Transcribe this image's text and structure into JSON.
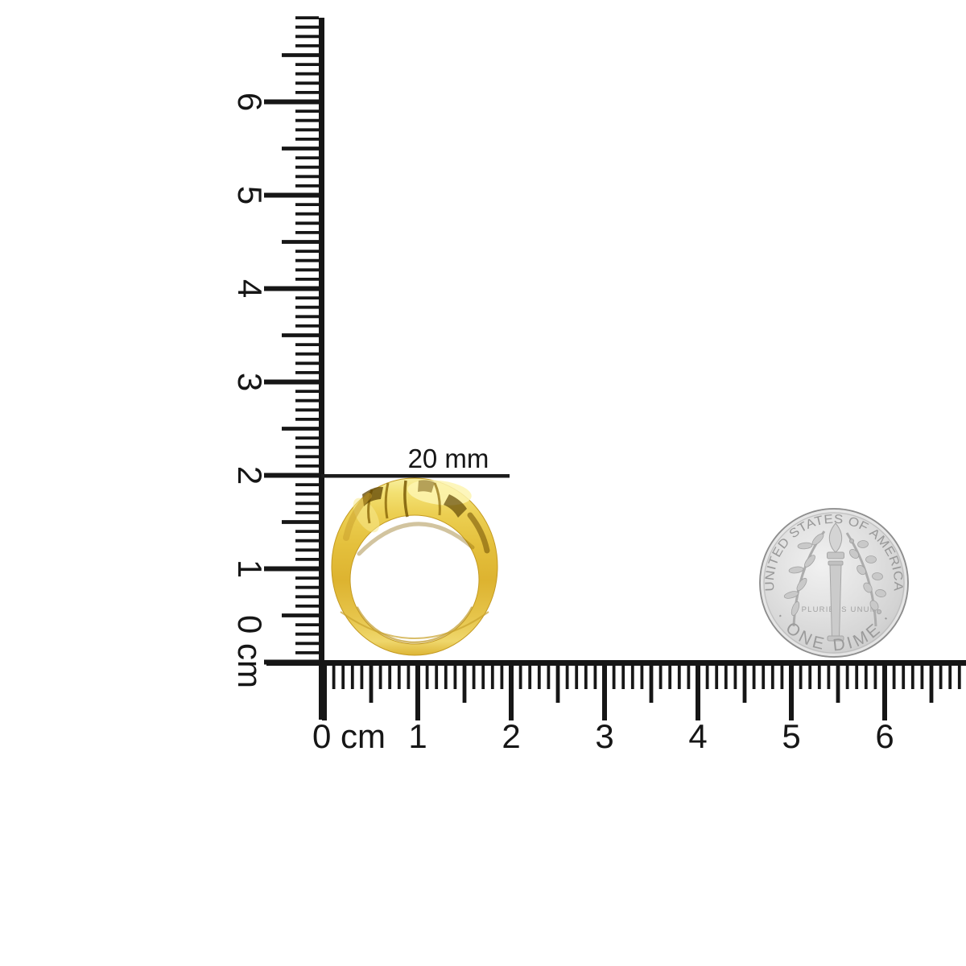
{
  "vertical_ruler": {
    "unit": "cm",
    "numbers": [
      "6",
      "5",
      "4",
      "3",
      "2",
      "1"
    ],
    "zero_label": "0 cm"
  },
  "horizontal_ruler": {
    "unit": "cm",
    "numbers": [
      "1",
      "2",
      "3",
      "4",
      "5",
      "6"
    ],
    "zero_label": "0 cm"
  },
  "dimension": {
    "label": "20 mm"
  },
  "coin": {
    "top_text": "UNITED STATES OF AMERICA",
    "bottom_text": "· ONE DIME ·",
    "motto": "E PLURIBUS UNUM"
  },
  "colors": {
    "ruler": "#161616",
    "gold": "#e6c23e",
    "gold_highlight": "#fdf5b0",
    "gold_shadow": "#6f4e04",
    "coin_silver": "#d6d6d6",
    "coin_text": "#9a9a9a",
    "background": "#ffffff"
  }
}
